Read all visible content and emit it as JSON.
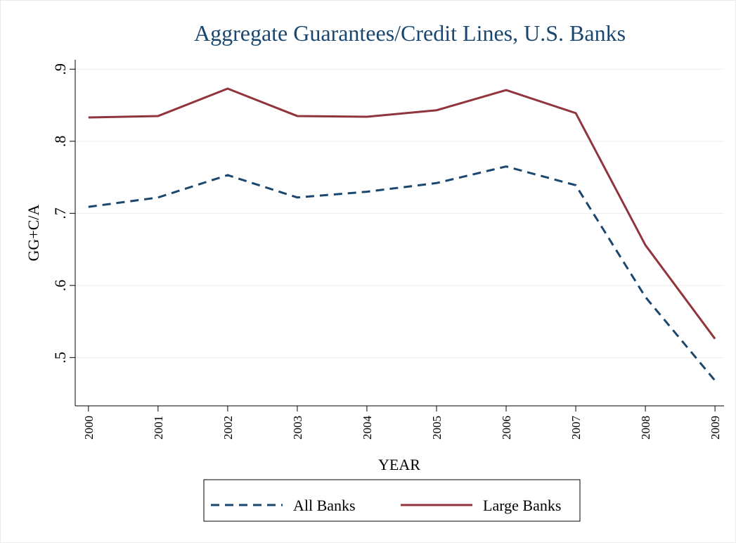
{
  "chart_data": {
    "type": "line",
    "title": "Aggregate Guarantees/Credit Lines, U.S. Banks",
    "x_label": "YEAR",
    "y_label": "GG+C/A",
    "x": [
      2000,
      2001,
      2002,
      2003,
      2004,
      2005,
      2006,
      2007,
      2008,
      2009
    ],
    "series": [
      {
        "name": "All Banks",
        "color": "#1a476f",
        "dash": true,
        "values": [
          0.709,
          0.722,
          0.753,
          0.722,
          0.73,
          0.742,
          0.765,
          0.739,
          0.584,
          0.468
        ]
      },
      {
        "name": "Large Banks",
        "color": "#90353b",
        "dash": false,
        "values": [
          0.833,
          0.835,
          0.873,
          0.835,
          0.834,
          0.843,
          0.871,
          0.839,
          0.656,
          0.526
        ]
      }
    ],
    "xlim": [
      1999.81,
      2009.13
    ],
    "xticks": [
      2000,
      2001,
      2002,
      2003,
      2004,
      2005,
      2006,
      2007,
      2008,
      2009
    ],
    "ylim": [
      0.433,
      0.913
    ],
    "yticks": [
      {
        "value": 0.5,
        "label": ".5"
      },
      {
        "value": 0.6,
        "label": ".6"
      },
      {
        "value": 0.7,
        "label": ".7"
      },
      {
        "value": 0.8,
        "label": ".8"
      },
      {
        "value": 0.9,
        "label": ".9"
      }
    ],
    "grid": true,
    "legend": "bottom"
  }
}
